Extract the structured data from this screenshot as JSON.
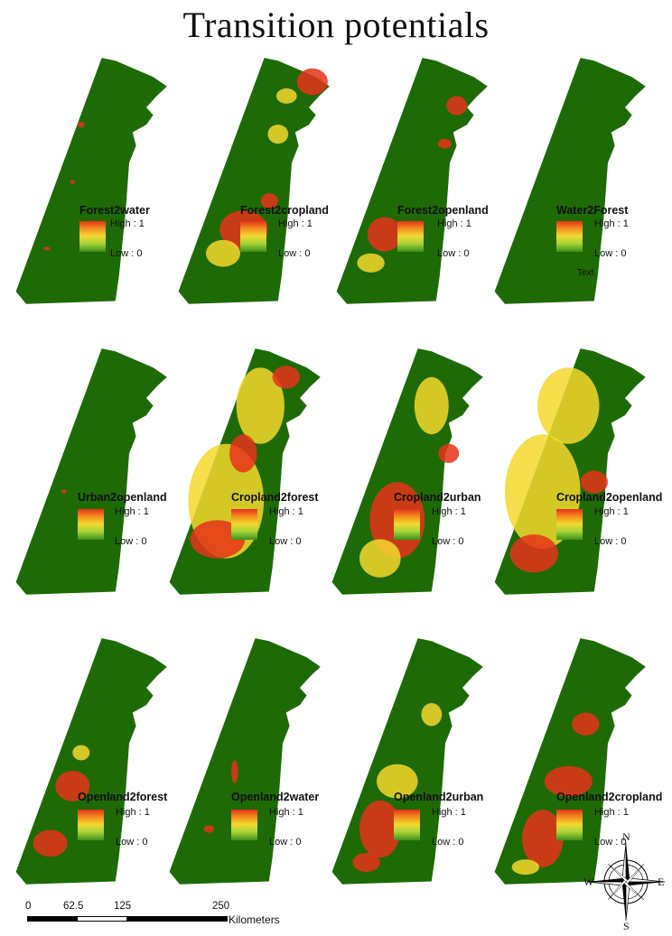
{
  "title": "Transition potentials",
  "panels": [
    {
      "name": "Forest2water",
      "high": "High : 1",
      "low": "Low : 0",
      "extra": ""
    },
    {
      "name": "Forest2cropland",
      "high": "High : 1",
      "low": "Low : 0",
      "extra": ""
    },
    {
      "name": "Forest2openland",
      "high": "High : 1",
      "low": "Low : 0",
      "extra": ""
    },
    {
      "name": "Water2Forest",
      "high": "High : 1",
      "low": "Low : 0",
      "extra": "Text"
    },
    {
      "name": "Urban2openland",
      "high": "High : 1",
      "low": "Low : 0",
      "extra": ""
    },
    {
      "name": "Cropland2forest",
      "high": "High : 1",
      "low": "Low : 0",
      "extra": ""
    },
    {
      "name": "Cropland2urban",
      "high": "High : 1",
      "low": "Low : 0",
      "extra": ""
    },
    {
      "name": "Cropland2openland",
      "high": "High : 1",
      "low": "Low : 0",
      "extra": ""
    },
    {
      "name": "Openland2forest",
      "high": "High : 1",
      "low": "Low : 0",
      "extra": ""
    },
    {
      "name": "Openland2water",
      "high": "High : 1",
      "low": "Low : 0",
      "extra": ""
    },
    {
      "name": "Openland2urban",
      "high": "High : 1",
      "low": "Low : 0",
      "extra": ""
    },
    {
      "name": "Openland2cropland",
      "high": "High : 1",
      "low": "Low : 0",
      "extra": ""
    }
  ],
  "scale": {
    "ticks": [
      "0",
      "62.5",
      "125",
      "250"
    ],
    "units": "Kilometers"
  },
  "compass": {
    "n": "N",
    "s": "S",
    "e": "E",
    "w": "W"
  },
  "colors": {
    "base": "#1e6a06",
    "high": "#e5321a",
    "mid": "#f5d82e",
    "low": "#3f8f1d"
  }
}
